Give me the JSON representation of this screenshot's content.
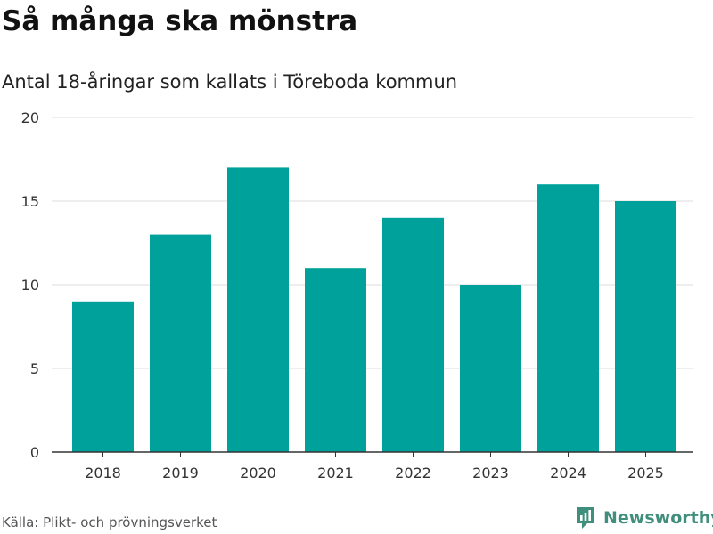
{
  "title": "Så många ska mönstra",
  "subtitle": "Antal 18-åringar som kallats i Töreboda kommun",
  "source": "Källa: Plikt- och prövningsverket",
  "brand": "Newsworthy",
  "colors": {
    "bar": "#00a19a",
    "grid": "#dddddd",
    "axis": "#333333",
    "brand": "#3f8f7c"
  },
  "chart_data": {
    "type": "bar",
    "title": "Så många ska mönstra",
    "subtitle": "Antal 18-åringar som kallats i Töreboda kommun",
    "xlabel": "",
    "ylabel": "",
    "categories": [
      "2018",
      "2019",
      "2020",
      "2021",
      "2022",
      "2023",
      "2024",
      "2025"
    ],
    "values": [
      9,
      13,
      17,
      11,
      14,
      10,
      16,
      15
    ],
    "ylim": [
      0,
      20
    ],
    "yticks": [
      0,
      5,
      10,
      15,
      20
    ],
    "grid": true,
    "legend": "none"
  }
}
